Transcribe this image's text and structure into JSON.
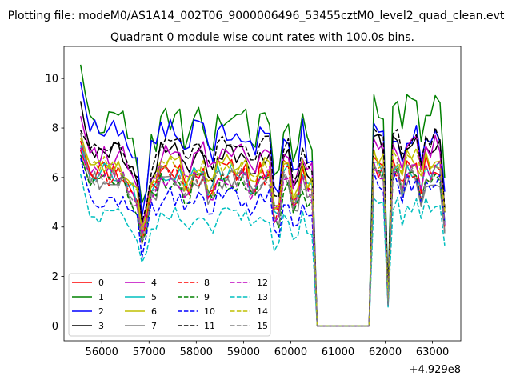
{
  "chart_data": {
    "type": "line",
    "suptitle": "Plotting file: modeM0/AS1A14_002T06_9000006496_53455cztM0_level2_quad_clean.evt",
    "title": "Quadrant 0 module wise count rates with 100.0s bins.",
    "x_offset_label": "+4.929e8",
    "xlim": [
      55200,
      63600
    ],
    "ylim": [
      -0.6,
      11.3
    ],
    "x_ticks": [
      56000,
      57000,
      58000,
      59000,
      60000,
      61000,
      62000,
      63000
    ],
    "x_tick_labels": [
      "56000",
      "57000",
      "58000",
      "59000",
      "60000",
      "61000",
      "62000",
      "63000"
    ],
    "y_ticks": [
      0,
      2,
      4,
      6,
      8,
      10
    ],
    "y_tick_labels": [
      "0",
      "2",
      "4",
      "6",
      "8",
      "10"
    ],
    "legend_location": "lower-left",
    "segments": [
      {
        "name": "first-interval",
        "x_start": 55550,
        "x_end": 60460,
        "step": 100
      },
      {
        "name": "gap",
        "x_start": 60560,
        "x_end": 61660,
        "step": 100
      },
      {
        "name": "second-interval",
        "x_start": 61760,
        "x_end": 63260,
        "step": 100
      }
    ],
    "gap_value": 0,
    "series": [
      {
        "name": "0",
        "color": "#ff0000",
        "dash": "solid",
        "level1": 6.3,
        "level2": 6.5,
        "start": 7.6,
        "jitter": 0.45,
        "seed": 11
      },
      {
        "name": "1",
        "color": "#008000",
        "dash": "solid",
        "level1": 8.3,
        "level2": 8.9,
        "start": 10.7,
        "jitter": 0.55,
        "seed": 22
      },
      {
        "name": "2",
        "color": "#0000ff",
        "dash": "solid",
        "level1": 7.9,
        "level2": 7.8,
        "start": 10.0,
        "jitter": 0.55,
        "seed": 33
      },
      {
        "name": "3",
        "color": "#000000",
        "dash": "solid",
        "level1": 7.0,
        "level2": 7.3,
        "start": 9.2,
        "jitter": 0.45,
        "seed": 44
      },
      {
        "name": "4",
        "color": "#bf00bf",
        "dash": "solid",
        "level1": 7.0,
        "level2": 7.2,
        "start": 8.6,
        "jitter": 0.5,
        "seed": 55
      },
      {
        "name": "5",
        "color": "#00bfbf",
        "dash": "solid",
        "level1": 6.2,
        "level2": 6.3,
        "start": 7.4,
        "jitter": 0.4,
        "seed": 66
      },
      {
        "name": "6",
        "color": "#bfbf00",
        "dash": "solid",
        "level1": 6.5,
        "level2": 6.7,
        "start": 7.9,
        "jitter": 0.45,
        "seed": 77
      },
      {
        "name": "7",
        "color": "#808080",
        "dash": "solid",
        "level1": 5.9,
        "level2": 6.0,
        "start": 7.0,
        "jitter": 0.4,
        "seed": 88
      },
      {
        "name": "8",
        "color": "#ff0000",
        "dash": "dashed",
        "level1": 6.1,
        "level2": 6.2,
        "start": 7.2,
        "jitter": 0.45,
        "seed": 99
      },
      {
        "name": "9",
        "color": "#008000",
        "dash": "dashed",
        "level1": 5.8,
        "level2": 6.1,
        "start": 7.0,
        "jitter": 0.4,
        "seed": 110
      },
      {
        "name": "10",
        "color": "#0000ff",
        "dash": "dashed",
        "level1": 5.2,
        "level2": 5.9,
        "start": 6.9,
        "jitter": 0.45,
        "seed": 121
      },
      {
        "name": "11",
        "color": "#000000",
        "dash": "dashed",
        "level1": 7.3,
        "level2": 7.6,
        "start": 8.0,
        "jitter": 0.45,
        "seed": 132
      },
      {
        "name": "12",
        "color": "#bf00bf",
        "dash": "dashed",
        "level1": 6.0,
        "level2": 6.3,
        "start": 7.3,
        "jitter": 0.45,
        "seed": 143
      },
      {
        "name": "13",
        "color": "#00bfbf",
        "dash": "dashed",
        "level1": 4.5,
        "level2": 4.9,
        "start": 6.2,
        "jitter": 0.35,
        "seed": 154
      },
      {
        "name": "14",
        "color": "#bfbf00",
        "dash": "dashed",
        "level1": 6.4,
        "level2": 6.8,
        "start": 7.7,
        "jitter": 0.45,
        "seed": 165
      },
      {
        "name": "15",
        "color": "#808080",
        "dash": "dashed",
        "level1": 6.0,
        "level2": 6.2,
        "start": 7.9,
        "jitter": 0.45,
        "seed": 176
      }
    ]
  }
}
